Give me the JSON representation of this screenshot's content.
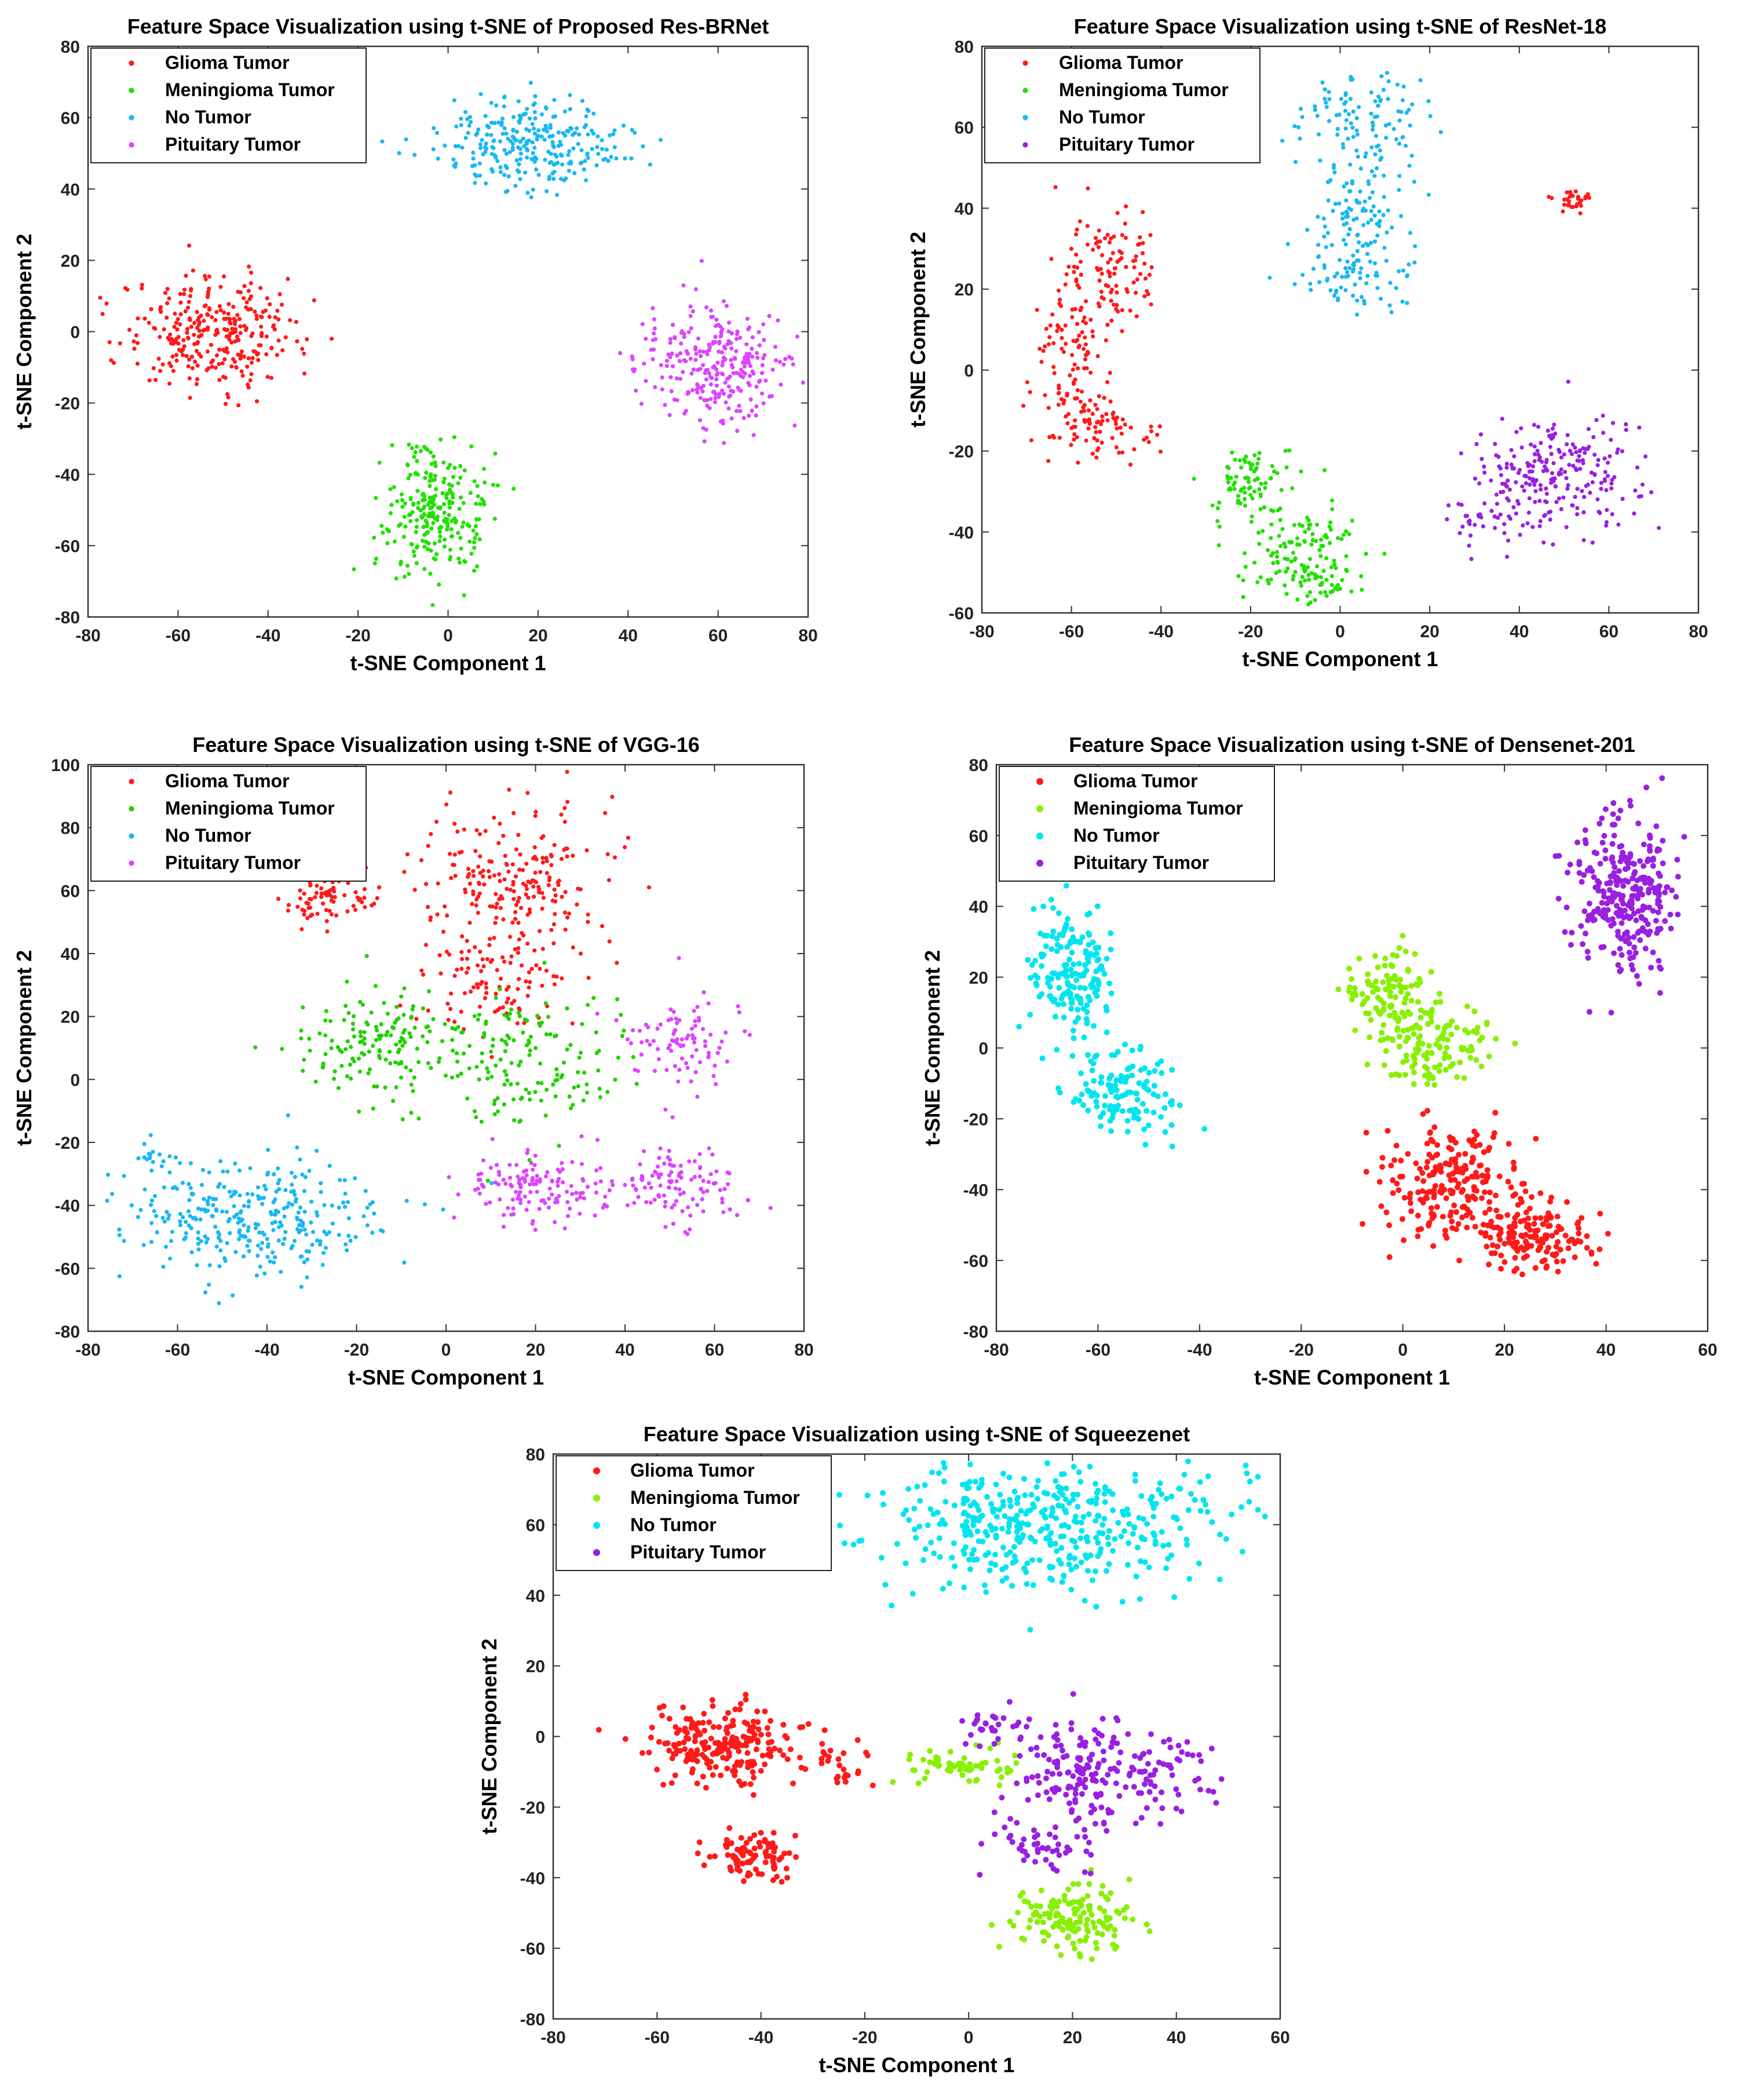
{
  "classes": [
    {
      "key": "glioma",
      "label": "Glioma Tumor"
    },
    {
      "key": "meningioma",
      "label": "Meningioma Tumor"
    },
    {
      "key": "no",
      "label": "No Tumor"
    },
    {
      "key": "pituitary",
      "label": "Pituitary Tumor"
    }
  ],
  "chart_data": [
    {
      "type": "scatter",
      "title": "Feature Space Visualization using t-SNE of Proposed Res-BRNet",
      "xlabel": "t-SNE Component 1",
      "ylabel": "t-SNE Component 2",
      "xlim": [
        -80,
        80
      ],
      "ylim": [
        -80,
        80
      ],
      "xticks": [
        -80,
        -60,
        -40,
        -20,
        0,
        20,
        40,
        60,
        80
      ],
      "yticks": [
        -80,
        -60,
        -40,
        -20,
        0,
        20,
        40,
        60,
        80
      ],
      "legend": "top-left",
      "colors": {
        "glioma": "#ff1a1a",
        "meningioma": "#22e000",
        "no": "#19b8f0",
        "pituitary": "#dd44ff"
      },
      "series": [
        {
          "class": "glioma",
          "clusters": [
            {
              "cx": -52,
              "cy": 0,
              "sx": 10,
              "sy": 8,
              "n": 300
            }
          ]
        },
        {
          "class": "meningioma",
          "clusters": [
            {
              "cx": -3,
              "cy": -50,
              "sx": 5.5,
              "sy": 9,
              "n": 250
            }
          ]
        },
        {
          "class": "no",
          "clusters": [
            {
              "cx": 18,
              "cy": 53,
              "sx": 11,
              "sy": 6,
              "n": 280
            }
          ]
        },
        {
          "class": "pituitary",
          "clusters": [
            {
              "cx": 60,
              "cy": -10,
              "sx": 8,
              "sy": 8,
              "n": 280
            }
          ]
        }
      ]
    },
    {
      "type": "scatter",
      "title": "Feature Space Visualization using t-SNE of ResNet-18",
      "xlabel": "t-SNE Component 1",
      "ylabel": "t-SNE Component 2",
      "xlim": [
        -80,
        80
      ],
      "ylim": [
        -60,
        80
      ],
      "xticks": [
        -80,
        -60,
        -40,
        -20,
        0,
        20,
        40,
        60,
        80
      ],
      "yticks": [
        -60,
        -40,
        -20,
        0,
        20,
        40,
        60,
        80
      ],
      "legend": "top-left",
      "colors": {
        "glioma": "#ff1a1a",
        "meningioma": "#22e000",
        "no": "#19b8f0",
        "pituitary": "#9920e0"
      },
      "series": [
        {
          "class": "glioma",
          "clusters": [
            {
              "cx": -52,
              "cy": 25,
              "sx": 5,
              "sy": 7,
              "n": 110
            },
            {
              "cx": -60,
              "cy": 2,
              "sx": 4,
              "sy": 9,
              "n": 100
            },
            {
              "cx": -53,
              "cy": -15,
              "sx": 5,
              "sy": 4,
              "n": 70
            },
            {
              "cx": 53,
              "cy": 42,
              "sx": 3,
              "sy": 1.5,
              "n": 30
            }
          ]
        },
        {
          "class": "meningioma",
          "clusters": [
            {
              "cx": -20,
              "cy": -28,
              "sx": 4,
              "sy": 5,
              "n": 80
            },
            {
              "cx": -10,
              "cy": -44,
              "sx": 7,
              "sy": 6,
              "n": 120
            },
            {
              "cx": -3,
              "cy": -54,
              "sx": 3,
              "sy": 2.5,
              "n": 30
            }
          ]
        },
        {
          "class": "no",
          "clusters": [
            {
              "cx": 5,
              "cy": 63,
              "sx": 8,
              "sy": 5,
              "n": 90
            },
            {
              "cx": 3,
              "cy": 40,
              "sx": 6,
              "sy": 10,
              "n": 120
            },
            {
              "cx": 4,
              "cy": 22,
              "sx": 6,
              "sy": 4,
              "n": 60
            }
          ]
        },
        {
          "class": "pituitary",
          "clusters": [
            {
              "cx": 48,
              "cy": -27,
              "sx": 9,
              "sy": 7,
              "n": 240
            },
            {
              "cx": 30,
              "cy": -38,
              "sx": 4,
              "sy": 3,
              "n": 30
            }
          ]
        }
      ]
    },
    {
      "type": "scatter",
      "title": "Feature Space Visualization using t-SNE of VGG-16",
      "xlabel": "t-SNE Component 1",
      "ylabel": "t-SNE Component 2",
      "xlim": [
        -80,
        80
      ],
      "ylim": [
        -80,
        100
      ],
      "xticks": [
        -80,
        -60,
        -40,
        -20,
        0,
        20,
        40,
        60,
        80
      ],
      "yticks": [
        -80,
        -60,
        -40,
        -20,
        0,
        20,
        40,
        60,
        80,
        100
      ],
      "legend": "top-left",
      "colors": {
        "glioma": "#ff1a1a",
        "meningioma": "#22d000",
        "no": "#19b8f0",
        "pituitary": "#dd44ff"
      },
      "series": [
        {
          "class": "glioma",
          "clusters": [
            {
              "cx": -27,
              "cy": 58,
              "sx": 5,
              "sy": 5,
              "n": 90
            },
            {
              "cx": 15,
              "cy": 62,
              "sx": 10,
              "sy": 12,
              "n": 230
            },
            {
              "cx": 12,
              "cy": 30,
              "sx": 8,
              "sy": 8,
              "n": 80
            }
          ]
        },
        {
          "class": "meningioma",
          "clusters": [
            {
              "cx": -15,
              "cy": 10,
              "sx": 9,
              "sy": 10,
              "n": 150
            },
            {
              "cx": 17,
              "cy": 5,
              "sx": 11,
              "sy": 11,
              "n": 150
            }
          ]
        },
        {
          "class": "no",
          "clusters": [
            {
              "cx": -45,
              "cy": -44,
              "sx": 15,
              "sy": 9,
              "n": 320
            },
            {
              "cx": -66,
              "cy": -25,
              "sx": 2,
              "sy": 2,
              "n": 15
            }
          ]
        },
        {
          "class": "pituitary",
          "clusters": [
            {
              "cx": 20,
              "cy": -35,
              "sx": 8,
              "sy": 6,
              "n": 140
            },
            {
              "cx": 52,
              "cy": -33,
              "sx": 7,
              "sy": 6,
              "n": 110
            },
            {
              "cx": 52,
              "cy": 12,
              "sx": 6,
              "sy": 7,
              "n": 90
            }
          ]
        }
      ]
    },
    {
      "type": "scatter",
      "title": "Feature Space Visualization using t-SNE of Densenet-201",
      "xlabel": "t-SNE Component 1",
      "ylabel": "t-SNE Component 2",
      "xlim": [
        -80,
        60
      ],
      "ylim": [
        -80,
        80
      ],
      "xticks": [
        -80,
        -60,
        -40,
        -20,
        0,
        20,
        40,
        60
      ],
      "yticks": [
        -80,
        -60,
        -40,
        -20,
        0,
        20,
        40,
        60,
        80
      ],
      "legend": "top-left",
      "colors": {
        "glioma": "#ff1a1a",
        "meningioma": "#88f000",
        "no": "#00e5ee",
        "pituitary": "#9920e0"
      },
      "series": [
        {
          "class": "glioma",
          "clusters": [
            {
              "cx": 10,
              "cy": -38,
              "sx": 7,
              "sy": 8,
              "n": 220
            },
            {
              "cx": 27,
              "cy": -54,
              "sx": 6,
              "sy": 5,
              "n": 150
            }
          ]
        },
        {
          "class": "meningioma",
          "clusters": [
            {
              "cx": -2,
              "cy": 15,
              "sx": 4,
              "sy": 6,
              "n": 110
            },
            {
              "cx": 7,
              "cy": 0,
              "sx": 5,
              "sy": 5,
              "n": 110
            }
          ]
        },
        {
          "class": "no",
          "clusters": [
            {
              "cx": -65,
              "cy": 20,
              "sx": 4,
              "sy": 10,
              "n": 180
            },
            {
              "cx": -56,
              "cy": -12,
              "sx": 6,
              "sy": 6,
              "n": 130
            }
          ]
        },
        {
          "class": "pituitary",
          "clusters": [
            {
              "cx": 44,
              "cy": 42,
              "sx": 5,
              "sy": 12,
              "n": 290
            }
          ]
        }
      ]
    },
    {
      "type": "scatter",
      "title": "Feature Space Visualization using t-SNE of Squeezenet",
      "xlabel": "t-SNE Component 1",
      "ylabel": "t-SNE Component 2",
      "xlim": [
        -80,
        60
      ],
      "ylim": [
        -80,
        80
      ],
      "xticks": [
        -80,
        -60,
        -40,
        -20,
        0,
        20,
        40,
        60
      ],
      "yticks": [
        -80,
        -60,
        -40,
        -20,
        0,
        20,
        40,
        60,
        80
      ],
      "legend": "top-left",
      "colors": {
        "glioma": "#ff1a1a",
        "meningioma": "#88f000",
        "no": "#00e5ee",
        "pituitary": "#9920e0"
      },
      "series": [
        {
          "class": "glioma",
          "clusters": [
            {
              "cx": -48,
              "cy": -2,
              "sx": 8,
              "sy": 6,
              "n": 220
            },
            {
              "cx": -42,
              "cy": -33,
              "sx": 4,
              "sy": 3.5,
              "n": 90
            },
            {
              "cx": -25,
              "cy": -8,
              "sx": 4,
              "sy": 3,
              "n": 25
            }
          ]
        },
        {
          "class": "meningioma",
          "clusters": [
            {
              "cx": 20,
              "cy": -52,
              "sx": 6,
              "sy": 5,
              "n": 140
            },
            {
              "cx": -2,
              "cy": -8,
              "sx": 6,
              "sy": 3,
              "n": 60
            }
          ]
        },
        {
          "class": "no",
          "clusters": [
            {
              "cx": 15,
              "cy": 60,
              "sx": 16,
              "sy": 9,
              "n": 420
            }
          ]
        },
        {
          "class": "pituitary",
          "clusters": [
            {
              "cx": 25,
              "cy": -10,
              "sx": 9,
              "sy": 7,
              "n": 200
            },
            {
              "cx": 15,
              "cy": -30,
              "sx": 6,
              "sy": 4,
              "n": 50
            },
            {
              "cx": 5,
              "cy": 3,
              "sx": 3,
              "sy": 3,
              "n": 30
            }
          ]
        }
      ]
    }
  ]
}
